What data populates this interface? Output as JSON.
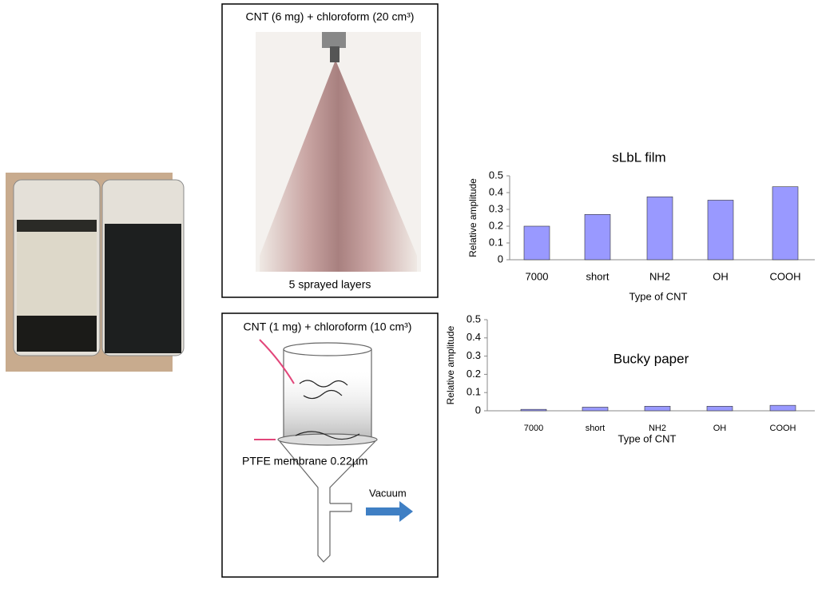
{
  "spray_panel": {
    "label": "CNT (6 mg) + chloroform (20 cm³)",
    "caption": "5 sprayed layers"
  },
  "filter_panel": {
    "label": "CNT (1 mg) + chloroform (10 cm³)",
    "membrane": "PTFE membrane 0.22µm",
    "vacuum": "Vacuum"
  },
  "chart_data": [
    {
      "type": "bar",
      "title": "sLbL film",
      "x_label": "Type of CNT",
      "y_label": "Relative amplitude",
      "categories": [
        "7000",
        "short",
        "NH2",
        "OH",
        "COOH"
      ],
      "values": [
        0.2,
        0.27,
        0.375,
        0.355,
        0.435
      ],
      "color": "#9999ff",
      "ylim": [
        0,
        0.5
      ],
      "yticks": [
        0,
        0.1,
        0.2,
        0.3,
        0.4,
        0.5
      ]
    },
    {
      "type": "bar",
      "title": "Bucky paper",
      "x_label": "Type of CNT",
      "y_label": "Relative amplitude",
      "categories": [
        "7000",
        "short",
        "NH2",
        "OH",
        "COOH"
      ],
      "values": [
        0.008,
        0.02,
        0.025,
        0.025,
        0.03
      ],
      "color": "#9999ff",
      "ylim": [
        0,
        0.5
      ],
      "yticks": [
        0,
        0.1,
        0.2,
        0.3,
        0.4,
        0.5
      ]
    }
  ]
}
